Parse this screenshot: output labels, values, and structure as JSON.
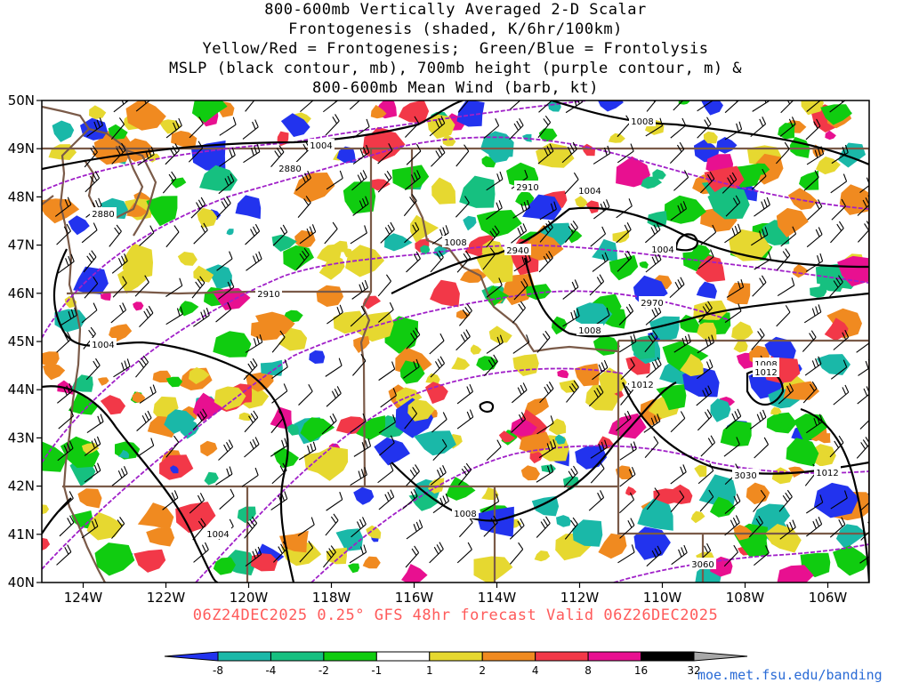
{
  "title_lines": [
    "800-600mb Vertically Averaged 2-D Scalar",
    "Frontogenesis (shaded, K/6hr/100km)",
    "Yellow/Red = Frontogenesis;  Green/Blue = Frontolysis",
    "MSLP (black contour, mb), 700mb height (purple contour, m) &",
    "800-600mb Mean Wind (barb, kt)"
  ],
  "footer": "06Z24DEC2025 0.25° GFS 48hr forecast Valid 06Z26DEC2025",
  "credit": "moe.met.fsu.edu/banding",
  "map": {
    "lon_range": [
      -125,
      -105
    ],
    "lat_range": [
      40,
      50
    ],
    "lon_ticks": [
      "124W",
      "122W",
      "120W",
      "118W",
      "116W",
      "114W",
      "112W",
      "110W",
      "108W",
      "106W"
    ],
    "lat_ticks": [
      "40N",
      "41N",
      "42N",
      "43N",
      "44N",
      "45N",
      "46N",
      "47N",
      "48N",
      "49N",
      "50N"
    ],
    "mslp_labels": [
      "1004",
      "1008",
      "1004",
      "1008",
      "1004",
      "1008",
      "1012",
      "1008",
      "1012",
      "1012",
      "1004",
      "1004",
      "1008"
    ],
    "height_labels": [
      "2880",
      "2880",
      "2910",
      "2910",
      "2940",
      "2970",
      "3030",
      "3060"
    ]
  },
  "colorbar": {
    "ticks": [
      "-8",
      "-4",
      "-2",
      "-1",
      "1",
      "2",
      "4",
      "8",
      "16",
      "32"
    ],
    "colors": [
      "#2233ee",
      "#1ab8a8",
      "#16c080",
      "#10cc10",
      "#ffffff",
      "#e6d830",
      "#f08a20",
      "#f23848",
      "#e81090",
      "#000000",
      "#a8a8a8"
    ]
  },
  "colors": {
    "mslp": "#000000",
    "height": "#a020c8",
    "border": "#7a5a48",
    "caption": "#ff5a5a",
    "link": "#2a6bd6"
  }
}
